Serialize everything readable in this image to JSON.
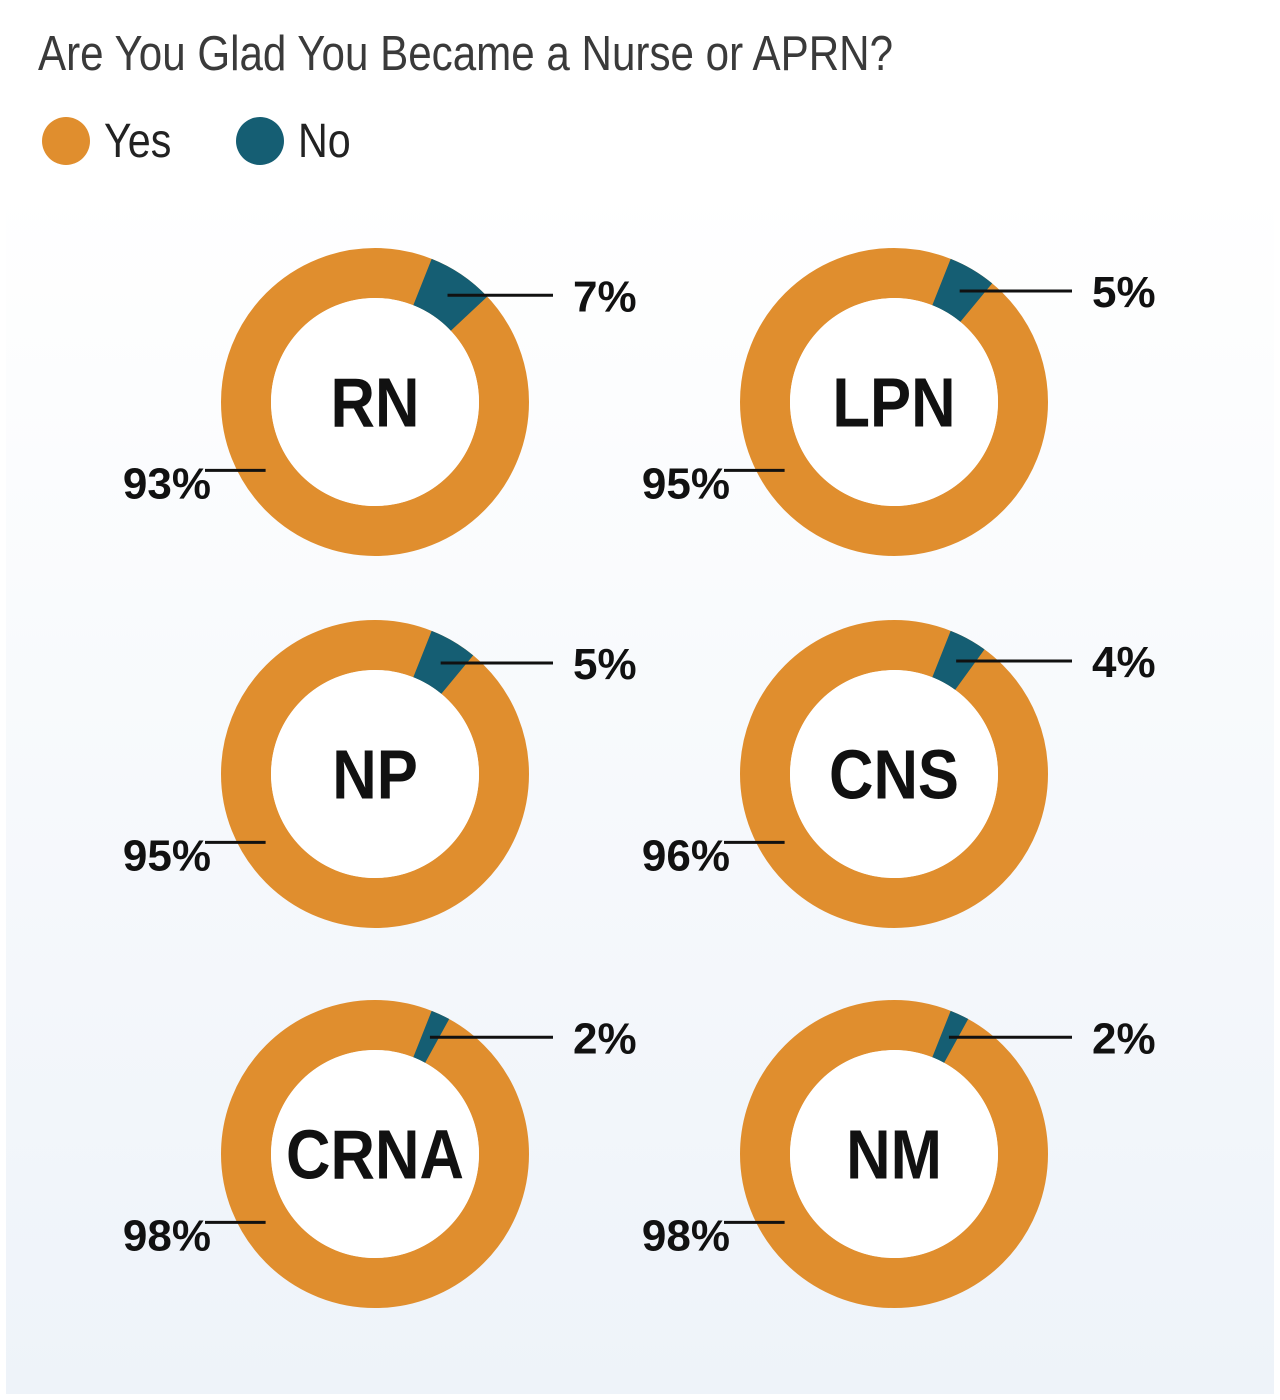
{
  "title": "Are You Glad You Became a Nurse or APRN?",
  "legend": [
    {
      "label": "Yes",
      "color": "#E08E2E"
    },
    {
      "label": "No",
      "color": "#155E73"
    }
  ],
  "colors": {
    "yes": "#E08E2E",
    "no": "#155E73",
    "leader": "#111111"
  },
  "chart_data": {
    "type": "pie",
    "variant": "donut-grid",
    "title": "Are You Glad You Became a Nurse or APRN?",
    "legend_position": "top-left",
    "series_names": [
      "Yes",
      "No"
    ],
    "charts": [
      {
        "category": "RN",
        "yes": 93,
        "no": 7,
        "yes_label": "93%",
        "no_label": "7%"
      },
      {
        "category": "LPN",
        "yes": 95,
        "no": 5,
        "yes_label": "95%",
        "no_label": "5%"
      },
      {
        "category": "NP",
        "yes": 95,
        "no": 5,
        "yes_label": "95%",
        "no_label": "5%"
      },
      {
        "category": "CNS",
        "yes": 96,
        "no": 4,
        "yes_label": "96%",
        "no_label": "4%"
      },
      {
        "category": "CRNA",
        "yes": 98,
        "no": 2,
        "yes_label": "98%",
        "no_label": "2%"
      },
      {
        "category": "NM",
        "yes": 98,
        "no": 2,
        "yes_label": "98%",
        "no_label": "2%"
      }
    ]
  }
}
